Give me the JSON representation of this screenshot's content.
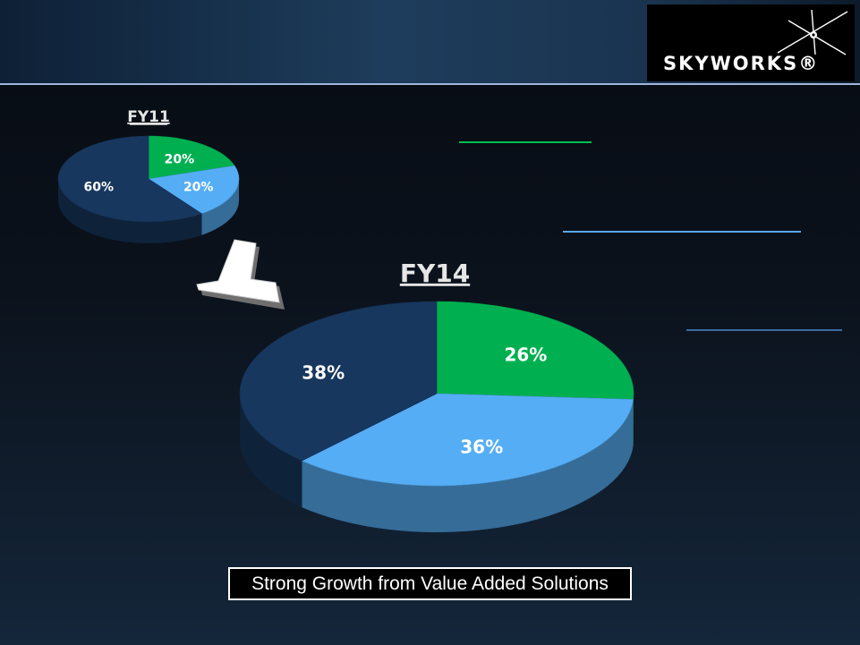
{
  "brand": {
    "logo_text": "SKYWORKS®"
  },
  "colors": {
    "green": "#00b050",
    "light_blue": "#55aef5",
    "dark_navy": "#17375e",
    "header_line": "#9fb6da"
  },
  "caption": "Strong Growth from Value Added Solutions",
  "chart_data": [
    {
      "type": "pie",
      "style": "3d",
      "title": "FY11",
      "labels": [
        "20%",
        "20%",
        "60%"
      ],
      "values": [
        20,
        20,
        60
      ],
      "colors": [
        "#00b050",
        "#55aef5",
        "#17375e"
      ]
    },
    {
      "type": "pie",
      "style": "3d",
      "title": "FY14",
      "labels": [
        "26%",
        "36%",
        "38%"
      ],
      "values": [
        26,
        36,
        38
      ],
      "colors": [
        "#00b050",
        "#55aef5",
        "#17375e"
      ]
    }
  ]
}
